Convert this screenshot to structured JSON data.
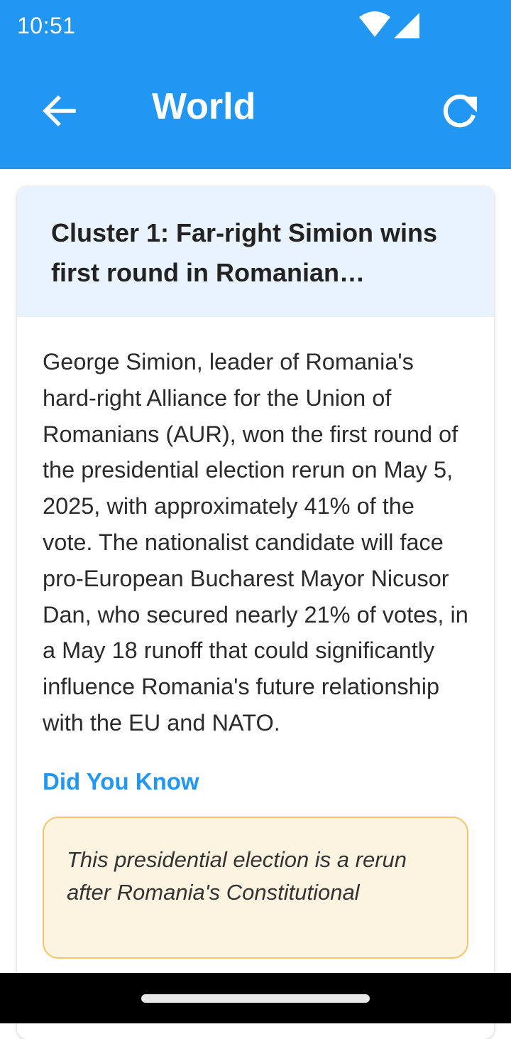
{
  "status_bar": {
    "time": "10:51",
    "icons": [
      "wifi-icon",
      "cell-signal-icon"
    ]
  },
  "app_bar": {
    "title": "World",
    "back_icon": "arrow-left-icon",
    "refresh_icon": "refresh-icon",
    "color": "#2196f3"
  },
  "cluster": {
    "title": "Cluster 1: Far-right Simion wins first round in Romanian…",
    "summary": "George Simion, leader of Romania's hard-right Alliance for the Union of Romanians (AUR), won the first round of the presidential election rerun on May 5, 2025, with approximately 41% of the vote. The nationalist candidate will face pro-European Bucharest Mayor Nicusor Dan, who secured nearly 21% of votes, in a May 18 runoff that could significantly influence Romania's future relationship with the EU and NATO.",
    "did_you_know_heading": "Did You Know",
    "did_you_know_text": "This presidential election is a rerun after Romania's Constitutional"
  },
  "colors": {
    "accent": "#2196f3",
    "header_bg": "#e8f3fd",
    "fact_bg": "#fdf3e1",
    "fact_border": "#f5c56a"
  }
}
